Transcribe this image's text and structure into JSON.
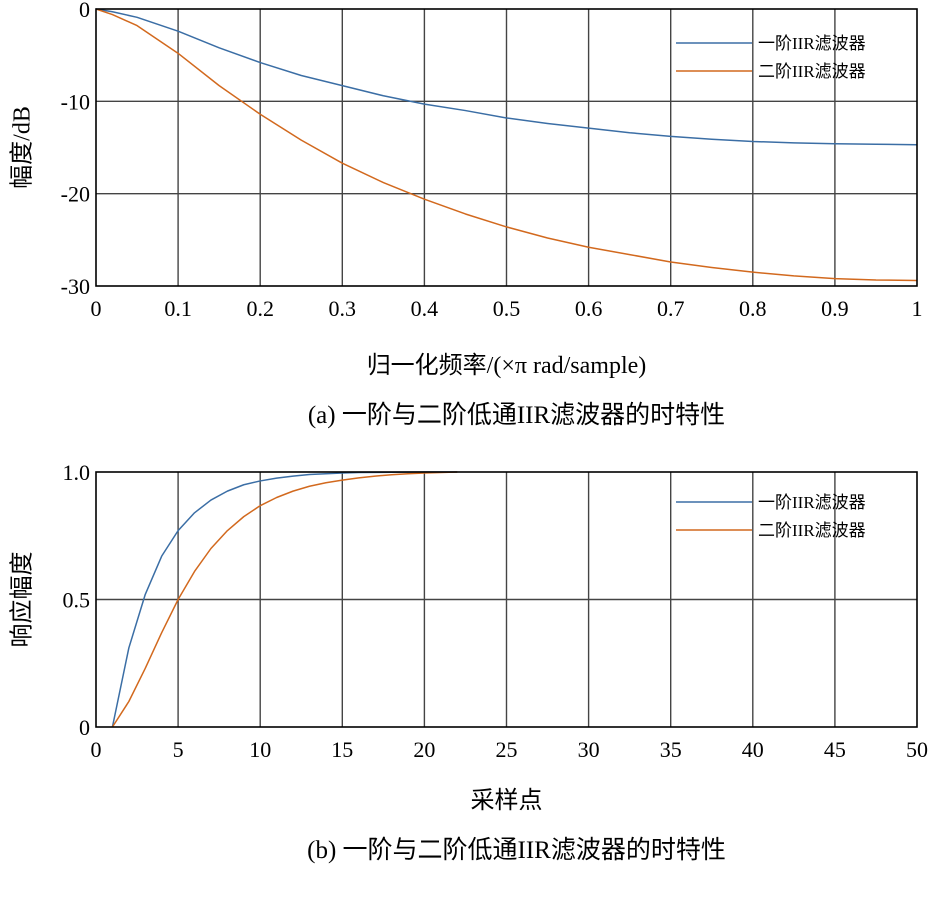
{
  "chart_data": [
    {
      "type": "line",
      "caption": "(a) 一阶与二阶低通IIR滤波器的时特性",
      "xlabel": "归一化频率/(×π rad/sample)",
      "ylabel": "幅度/dB",
      "xlim": [
        0,
        1
      ],
      "ylim": [
        -30,
        0
      ],
      "xticks": [
        0,
        0.1,
        0.2,
        0.3,
        0.4,
        0.5,
        0.6,
        0.7,
        0.8,
        0.9,
        1
      ],
      "xtick_labels": [
        "0",
        "0.1",
        "0.2",
        "0.3",
        "0.4",
        "0.5",
        "0.6",
        "0.7",
        "0.8",
        "0.9",
        "1"
      ],
      "yticks": [
        0,
        -10,
        -20,
        -30
      ],
      "ytick_labels": [
        "0",
        "-10",
        "-20",
        "-30"
      ],
      "grid": true,
      "legend_position": "top-right",
      "series": [
        {
          "name": "一阶IIR滤波器",
          "color": "#3b6ea5",
          "x": [
            0,
            0.02,
            0.05,
            0.1,
            0.15,
            0.2,
            0.25,
            0.3,
            0.35,
            0.4,
            0.45,
            0.5,
            0.55,
            0.6,
            0.65,
            0.7,
            0.75,
            0.8,
            0.85,
            0.9,
            0.95,
            1.0
          ],
          "y": [
            0,
            -0.3,
            -0.9,
            -2.4,
            -4.2,
            -5.8,
            -7.2,
            -8.3,
            -9.4,
            -10.3,
            -11.0,
            -11.8,
            -12.4,
            -12.9,
            -13.4,
            -13.8,
            -14.1,
            -14.35,
            -14.5,
            -14.6,
            -14.65,
            -14.7
          ]
        },
        {
          "name": "二阶IIR滤波器",
          "color": "#d2691e",
          "x": [
            0,
            0.02,
            0.05,
            0.1,
            0.15,
            0.2,
            0.25,
            0.3,
            0.35,
            0.4,
            0.45,
            0.5,
            0.55,
            0.6,
            0.65,
            0.7,
            0.75,
            0.8,
            0.85,
            0.9,
            0.95,
            1.0
          ],
          "y": [
            0,
            -0.6,
            -1.8,
            -4.8,
            -8.3,
            -11.4,
            -14.2,
            -16.7,
            -18.8,
            -20.6,
            -22.2,
            -23.6,
            -24.8,
            -25.8,
            -26.6,
            -27.4,
            -28.0,
            -28.5,
            -28.9,
            -29.2,
            -29.35,
            -29.4
          ]
        }
      ]
    },
    {
      "type": "line",
      "caption": "(b) 一阶与二阶低通IIR滤波器的时特性",
      "xlabel": "采样点",
      "ylabel": "响应幅度",
      "xlim": [
        0,
        50
      ],
      "ylim": [
        0,
        1
      ],
      "xticks": [
        0,
        5,
        10,
        15,
        20,
        25,
        30,
        35,
        40,
        45,
        50
      ],
      "xtick_labels": [
        "0",
        "5",
        "10",
        "15",
        "20",
        "25",
        "30",
        "35",
        "40",
        "45",
        "50"
      ],
      "yticks": [
        0,
        0.5,
        1.0
      ],
      "ytick_labels": [
        "0",
        "0.5",
        "1.0"
      ],
      "grid": true,
      "legend_position": "top-right",
      "series": [
        {
          "name": "一阶IIR滤波器",
          "color": "#3b6ea5",
          "x": [
            1,
            2,
            3,
            4,
            5,
            6,
            7,
            8,
            9,
            10,
            11,
            12,
            13,
            14,
            15,
            16,
            18,
            20,
            22
          ],
          "y": [
            0,
            0.31,
            0.52,
            0.67,
            0.77,
            0.84,
            0.89,
            0.925,
            0.95,
            0.965,
            0.976,
            0.984,
            0.99,
            0.993,
            0.996,
            0.998,
            0.999,
            1.0,
            1.0
          ]
        },
        {
          "name": "二阶IIR滤波器",
          "color": "#d2691e",
          "x": [
            1,
            2,
            3,
            4,
            5,
            6,
            7,
            8,
            9,
            10,
            11,
            12,
            13,
            14,
            15,
            16,
            17,
            18,
            19,
            20,
            21,
            22
          ],
          "y": [
            0,
            0.1,
            0.23,
            0.37,
            0.5,
            0.61,
            0.7,
            0.77,
            0.825,
            0.868,
            0.9,
            0.925,
            0.944,
            0.958,
            0.968,
            0.977,
            0.984,
            0.989,
            0.993,
            0.996,
            0.998,
            1.0
          ]
        }
      ]
    }
  ]
}
